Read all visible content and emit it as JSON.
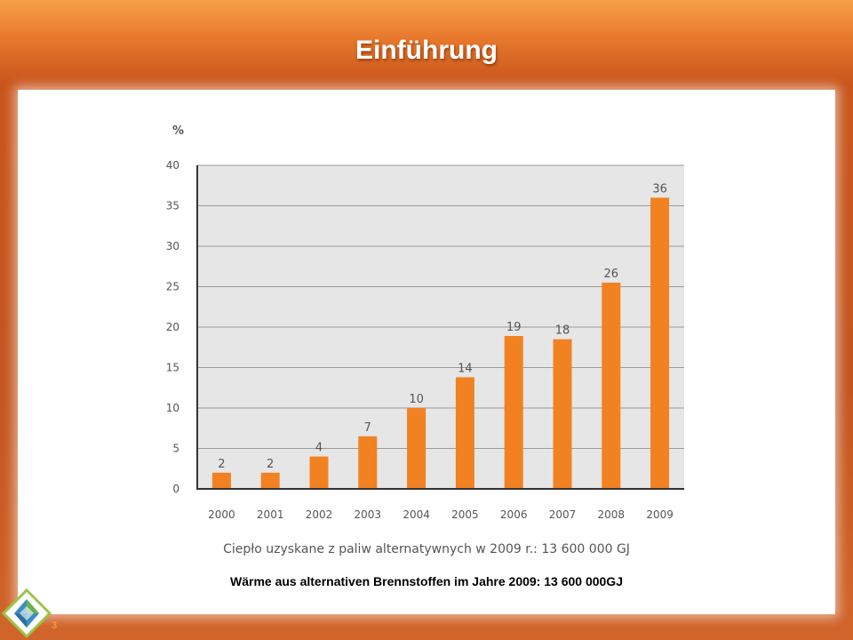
{
  "slide": {
    "title": "Einführung",
    "caption": "Wärme aus alternativen Brennstoffen im Jahre 2009: 13 600 000GJ",
    "page_number": "3"
  },
  "colors": {
    "bar": "#f28122",
    "plot_background": "#e6e6e6",
    "gridline": "#9a9a9a",
    "axis": "#333333",
    "tick_label": "#555555"
  },
  "chart_data": {
    "type": "bar",
    "title": "",
    "ylabel": "%",
    "xlabel": "Ciepło uzyskane z paliw alternatywnych w 2009 r.:  13 600 000 GJ",
    "categories": [
      "2000",
      "2001",
      "2002",
      "2003",
      "2004",
      "2005",
      "2006",
      "2007",
      "2008",
      "2009"
    ],
    "values": [
      2,
      2,
      4,
      6.5,
      10,
      13.8,
      18.9,
      18.5,
      25.5,
      36
    ],
    "data_labels": [
      "2",
      "2",
      "4",
      "7",
      "10",
      "14",
      "19",
      "18",
      "26",
      "36"
    ],
    "ylim": [
      0,
      40
    ],
    "yticks": [
      "0",
      "5",
      "10",
      "15",
      "20",
      "25",
      "30",
      "35",
      "40"
    ],
    "grid": true,
    "legend": false
  }
}
